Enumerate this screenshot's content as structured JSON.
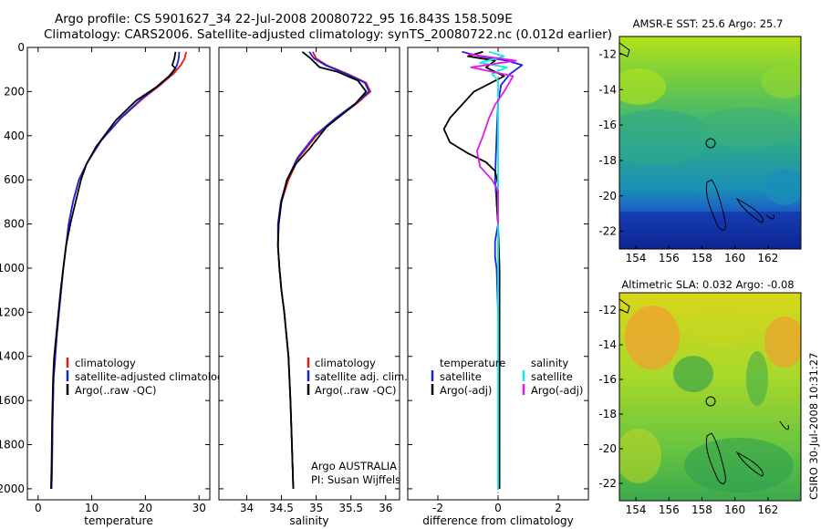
{
  "header": {
    "title_line1": "Argo profile: CS 5901627_34 22-Jul-2008 20080722_95 16.843S 158.509E",
    "title_line2": "Climatology: CARS2006. Satellite-adjusted climatology: synTS_20080722.nc (0.012d earlier)"
  },
  "side_label": "CSIRO 30-Jul-2008 10:31:27",
  "credit": {
    "line1": "Argo AUSTRALIA",
    "line2": "PI: Susan Wijffels"
  },
  "colors": {
    "red": "#e8141a",
    "blue": "#1a24e6",
    "black": "#000000",
    "cyan": "#18e8e8",
    "magenta": "#e619e6"
  },
  "chart_data": [
    {
      "type": "line",
      "panel": "temperature",
      "xlabel": "temperature",
      "xlim": [
        -2,
        32
      ],
      "ylim": [
        2050,
        0
      ],
      "xticks": [
        0,
        10,
        20,
        30
      ],
      "yticks": [
        0,
        200,
        400,
        600,
        800,
        1000,
        1200,
        1400,
        1600,
        1800,
        2000
      ],
      "legend": [
        "climatology",
        "satellite-adjusted climatology",
        "Argo(..raw -QC)"
      ],
      "series": [
        {
          "name": "climatology",
          "color": "red",
          "x": [
            27.6,
            27.3,
            26.6,
            25.2,
            22.8,
            19.6,
            15.5,
            11.8,
            9.2,
            7.6,
            6.5,
            5.7,
            5.2,
            4.7,
            4.3,
            3.9,
            3.5,
            3.2,
            2.9,
            2.7,
            2.6,
            2.5
          ],
          "y": [
            20,
            50,
            80,
            120,
            170,
            230,
            320,
            420,
            520,
            600,
            700,
            800,
            900,
            1000,
            1100,
            1200,
            1300,
            1400,
            1500,
            1700,
            1900,
            2000
          ]
        },
        {
          "name": "satellite-adjusted climatology",
          "color": "blue",
          "x": [
            26.3,
            26.2,
            25.9,
            24.9,
            22.6,
            19.4,
            15.4,
            11.8,
            9.2,
            7.6,
            6.5,
            5.7,
            5.2,
            4.7,
            4.3,
            3.9,
            3.5,
            3.2,
            2.9,
            2.7,
            2.6,
            2.5
          ],
          "y": [
            20,
            50,
            80,
            120,
            170,
            230,
            320,
            420,
            520,
            600,
            700,
            800,
            900,
            1000,
            1100,
            1200,
            1300,
            1400,
            1500,
            1700,
            1900,
            2000
          ]
        },
        {
          "name": "Argo(..raw -QC)",
          "color": "black",
          "x": [
            25.6,
            25.4,
            25.0,
            25.6,
            24.4,
            22.0,
            18.3,
            14.5,
            10.8,
            9.0,
            8.0,
            7.0,
            6.0,
            5.2,
            4.7,
            4.2,
            3.8,
            3.4,
            3.0,
            2.8,
            2.6,
            2.5,
            2.4
          ],
          "y": [
            20,
            50,
            80,
            95,
            130,
            180,
            240,
            330,
            450,
            530,
            600,
            700,
            800,
            900,
            1000,
            1100,
            1200,
            1300,
            1400,
            1500,
            1700,
            1900,
            2000
          ]
        }
      ]
    },
    {
      "type": "line",
      "panel": "salinity",
      "xlabel": "salinity",
      "xlim": [
        33.6,
        36.2
      ],
      "ylim": [
        2050,
        0
      ],
      "xticks": [
        34,
        34.5,
        35,
        35.5,
        36
      ],
      "legend": [
        "climatology",
        "satellite adj. clim.",
        "Argo(..raw -QC)"
      ],
      "series": [
        {
          "name": "climatology",
          "color": "red",
          "x": [
            34.95,
            35.0,
            35.15,
            35.45,
            35.72,
            35.78,
            35.6,
            35.3,
            35.0,
            34.75,
            34.6,
            34.5,
            34.46,
            34.45,
            34.47,
            34.5,
            34.54,
            34.57,
            34.6,
            34.63,
            34.65,
            34.67
          ],
          "y": [
            20,
            50,
            80,
            120,
            160,
            200,
            250,
            320,
            400,
            500,
            600,
            700,
            800,
            900,
            1000,
            1100,
            1200,
            1300,
            1400,
            1600,
            1800,
            2000
          ]
        },
        {
          "name": "satellite adj. clim.",
          "color": "blue",
          "x": [
            34.9,
            34.97,
            35.13,
            35.43,
            35.7,
            35.76,
            35.58,
            35.28,
            34.98,
            34.73,
            34.58,
            34.49,
            34.45,
            34.45,
            34.47,
            34.5,
            34.54,
            34.57,
            34.6,
            34.63,
            34.65,
            34.67
          ],
          "y": [
            20,
            50,
            80,
            120,
            160,
            200,
            250,
            320,
            400,
            500,
            600,
            700,
            800,
            900,
            1000,
            1100,
            1200,
            1300,
            1400,
            1600,
            1800,
            2000
          ]
        },
        {
          "name": "Argo(..raw -QC)",
          "color": "black",
          "x": [
            34.8,
            34.92,
            35.05,
            35.3,
            35.6,
            35.72,
            35.55,
            35.15,
            34.9,
            34.7,
            34.58,
            34.5,
            34.46,
            34.45,
            34.47,
            34.5,
            34.54,
            34.57,
            34.6,
            34.63,
            34.65,
            34.67
          ],
          "y": [
            20,
            50,
            90,
            110,
            150,
            200,
            260,
            360,
            460,
            530,
            600,
            700,
            800,
            900,
            1000,
            1100,
            1200,
            1300,
            1400,
            1600,
            1800,
            2000
          ]
        }
      ]
    },
    {
      "type": "line",
      "panel": "difference",
      "xlabel": "difference from climatology",
      "xlim": [
        -3,
        3
      ],
      "ylim": [
        2050,
        0
      ],
      "xticks": [
        -2,
        0,
        2
      ],
      "legend_temperature": {
        "heading": "temperature",
        "items": [
          "satellite",
          "Argo(-adj)"
        ]
      },
      "legend_salinity": {
        "heading": "salinity",
        "items": [
          "satellite",
          "Argo(-adj)"
        ]
      },
      "series": [
        {
          "name": "temperature satellite",
          "color": "blue",
          "x": [
            -1.2,
            -0.6,
            0.3,
            0.8,
            0.4,
            0.1,
            0.0,
            -0.05,
            -0.1,
            -0.05,
            0.0,
            -0.1,
            -0.1,
            -0.05,
            0.0,
            0.05,
            0.05,
            0.05,
            0.03
          ],
          "y": [
            20,
            40,
            60,
            80,
            120,
            170,
            250,
            400,
            600,
            700,
            800,
            880,
            950,
            1000,
            1200,
            1400,
            1600,
            1800,
            2000
          ]
        },
        {
          "name": "temperature Argo(-adj)",
          "color": "black",
          "x": [
            -0.5,
            -1.0,
            -0.1,
            -0.4,
            0.2,
            -0.8,
            -1.2,
            -1.6,
            -1.8,
            -1.6,
            -1.0,
            -0.4,
            -0.1,
            0.0,
            -0.05,
            0.0,
            0.05,
            0.05,
            0.05,
            0.05,
            0.05
          ],
          "y": [
            20,
            40,
            60,
            90,
            130,
            200,
            260,
            320,
            370,
            430,
            480,
            520,
            560,
            620,
            700,
            800,
            1000,
            1200,
            1500,
            1800,
            2000
          ]
        },
        {
          "name": "salinity satellite",
          "color": "cyan",
          "x": [
            -0.3,
            0.2,
            -0.6,
            0.3,
            -0.2,
            0.0,
            0.0,
            0.0,
            0.0,
            0.0,
            0.0,
            0.0,
            0.0
          ],
          "y": [
            20,
            40,
            70,
            90,
            120,
            150,
            200,
            300,
            500,
            800,
            1200,
            1600,
            2000
          ]
        },
        {
          "name": "salinity Argo(-adj)",
          "color": "magenta",
          "x": [
            -1.0,
            0.6,
            -0.9,
            0.5,
            0.2,
            -0.1,
            -0.3,
            -0.5,
            -0.7,
            -0.6,
            -0.2,
            0.0,
            0.0,
            0.0
          ],
          "y": [
            30,
            60,
            90,
            130,
            200,
            260,
            320,
            400,
            470,
            540,
            600,
            650,
            700,
            800
          ]
        }
      ]
    },
    {
      "type": "heatmap",
      "panel": "AMSR-E SST",
      "title": "AMSR-E SST: 25.6 Argo: 25.7",
      "xlim": [
        153,
        164
      ],
      "ylim": [
        -23,
        -11
      ],
      "xticks": [
        154,
        156,
        158,
        160,
        162
      ],
      "yticks": [
        -12,
        -14,
        -16,
        -18,
        -20,
        -22
      ],
      "argo_position": [
        158.509,
        -16.843
      ]
    },
    {
      "type": "heatmap",
      "panel": "Altimetric SLA",
      "title": "Altimetric SLA: 0.032 Argo: -0.08",
      "xlim": [
        153,
        164
      ],
      "ylim": [
        -23,
        -11
      ],
      "xticks": [
        154,
        156,
        158,
        160,
        162
      ],
      "yticks": [
        -12,
        -14,
        -16,
        -18,
        -20,
        -22
      ],
      "argo_position": [
        158.509,
        -16.843
      ]
    }
  ]
}
